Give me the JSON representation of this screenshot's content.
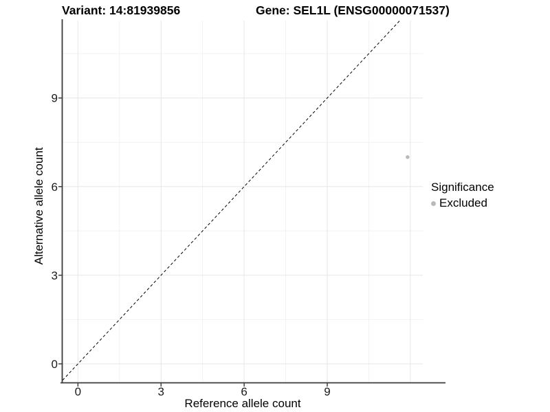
{
  "header": {
    "variant_title": "Variant: 14:81939856",
    "gene_title": "Gene: SEL1L (ENSG00000071537)"
  },
  "chart_data": {
    "type": "scatter",
    "title": "Variant: 14:81939856   Gene: SEL1L (ENSG00000071537)",
    "xlabel": "Reference allele count",
    "ylabel": "Alternative allele count",
    "x_ticks": [
      0,
      3,
      6,
      9
    ],
    "y_ticks": [
      0,
      3,
      6,
      9
    ],
    "x_minor": [
      1.5,
      4.5,
      7.5,
      10.5
    ],
    "y_minor": [
      1.5,
      4.5,
      7.5,
      10.5
    ],
    "x_grid_extra": [
      12
    ],
    "xlim": [
      -0.555,
      12.45
    ],
    "ylim": [
      -0.63,
      11.62
    ],
    "grid": true,
    "identity_line": {
      "style": "dashed",
      "slope": 1,
      "intercept": 0,
      "color": "#000000"
    },
    "series": [
      {
        "name": "Excluded",
        "color": "#b9b9b9",
        "points": [
          {
            "x": 11.9,
            "y": 7.0
          }
        ]
      }
    ],
    "legend": {
      "title": "Significance",
      "position": "right",
      "items": [
        {
          "label": "Excluded",
          "color": "#b9b9b9"
        }
      ]
    },
    "colors": {
      "background": "#ffffff",
      "grid_major": "#e6e6e6",
      "grid_minor": "#f2f2f2",
      "axis_line": "#3a3a3a",
      "tick_mark": "#333333",
      "tick_label": "#1a1a1a",
      "axis_title": "#000000"
    }
  }
}
